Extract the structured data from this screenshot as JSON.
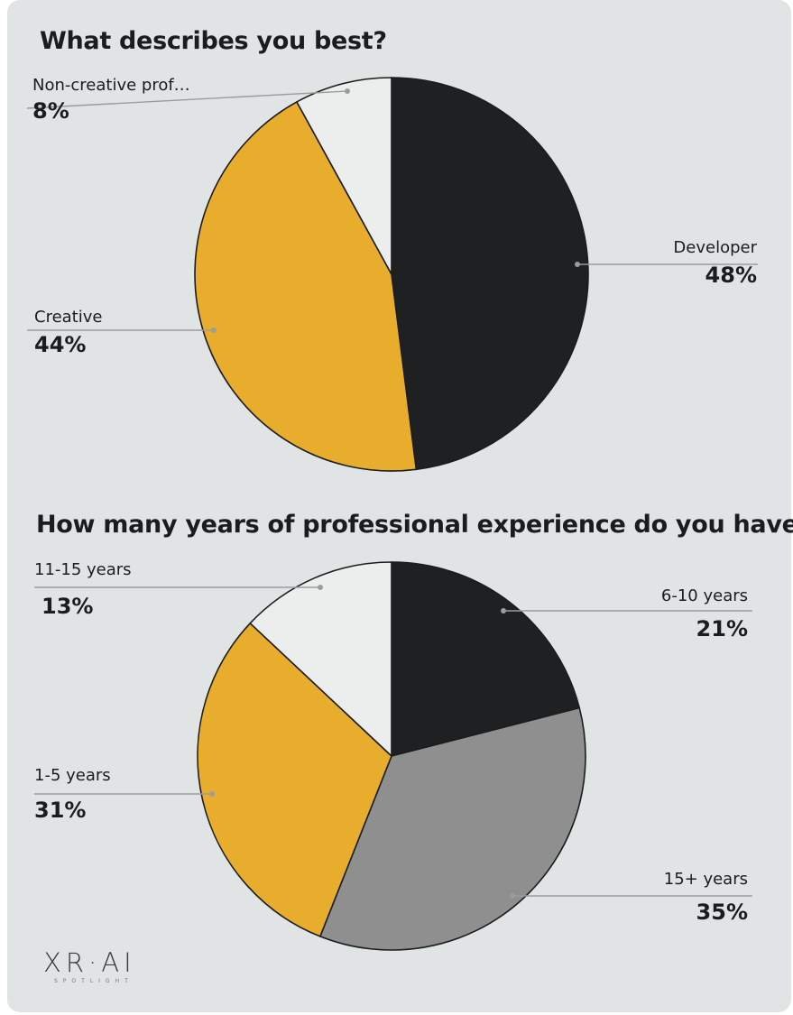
{
  "chart_data": [
    {
      "type": "pie",
      "title": "What describes you best?",
      "slices": [
        {
          "label": "Developer",
          "value": 48,
          "display": "48%",
          "color": "#1f2022"
        },
        {
          "label": "Creative",
          "value": 44,
          "display": "44%",
          "color": "#e8ad2c"
        },
        {
          "label": "Non-creative prof…",
          "value": 8,
          "display": "8%",
          "color": "#eceeee"
        }
      ]
    },
    {
      "type": "pie",
      "title": "How many years of professional experience do you have?",
      "slices": [
        {
          "label": "6-10 years",
          "value": 21,
          "display": "21%",
          "color": "#1f2022"
        },
        {
          "label": "15+ years",
          "value": 35,
          "display": "35%",
          "color": "#8f8f8f"
        },
        {
          "label": "1-5 years",
          "value": 31,
          "display": "31%",
          "color": "#e8ad2c"
        },
        {
          "label": "11-15 years",
          "value": 13,
          "display": "13%",
          "color": "#eceeee"
        }
      ]
    }
  ],
  "logo": {
    "text": "XR·AI",
    "subtext": "SPOTLIGHT"
  }
}
